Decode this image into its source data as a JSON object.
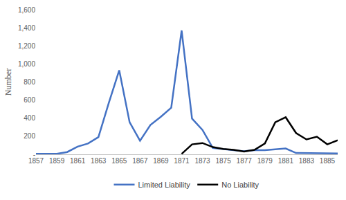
{
  "chart_data": {
    "type": "line",
    "y_label": "Number",
    "x": [
      1857,
      1858,
      1859,
      1860,
      1861,
      1862,
      1863,
      1864,
      1865,
      1866,
      1867,
      1868,
      1869,
      1870,
      1871,
      1872,
      1873,
      1874,
      1875,
      1876,
      1877,
      1878,
      1879,
      1880,
      1881,
      1882,
      1883,
      1884,
      1885,
      1886
    ],
    "series": [
      {
        "name": "Limited Liability",
        "color": "#4472c4",
        "values": [
          5,
          5,
          5,
          25,
          85,
          120,
          190,
          570,
          930,
          355,
          150,
          325,
          415,
          515,
          1370,
          395,
          270,
          70,
          55,
          45,
          35,
          45,
          45,
          55,
          65,
          15,
          15,
          10,
          10,
          10
        ]
      },
      {
        "name": "No Liability",
        "color": "#000000",
        "values": [
          null,
          null,
          null,
          null,
          null,
          null,
          null,
          null,
          null,
          null,
          null,
          null,
          null,
          null,
          5,
          110,
          125,
          80,
          60,
          50,
          30,
          50,
          120,
          355,
          410,
          235,
          165,
          195,
          110,
          155
        ]
      }
    ],
    "xlim": [
      1857,
      1886
    ],
    "xticks": [
      1857,
      1859,
      1861,
      1863,
      1865,
      1867,
      1869,
      1871,
      1873,
      1875,
      1877,
      1879,
      1881,
      1883,
      1885
    ],
    "ylim": [
      0,
      1600
    ],
    "yticks": [
      {
        "value": 0,
        "label": "-"
      },
      200,
      400,
      600,
      800,
      {
        "value": 1000,
        "label": "1,000"
      },
      {
        "value": 1200,
        "label": "1,200"
      },
      {
        "value": 1400,
        "label": "1,400"
      },
      {
        "value": 1600,
        "label": "1,600"
      }
    ],
    "grid": false,
    "legend": "bottom"
  }
}
